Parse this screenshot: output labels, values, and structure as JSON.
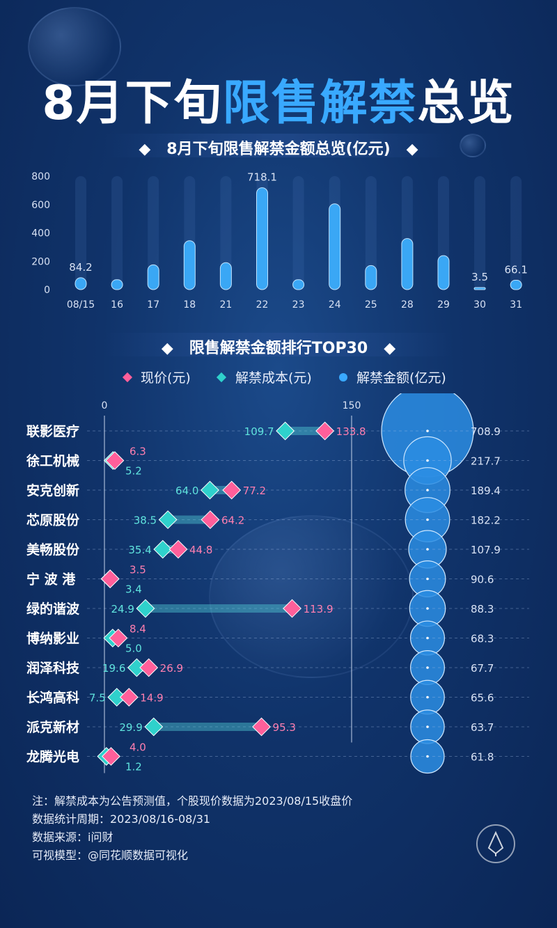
{
  "header": {
    "title_part1": "8月下旬",
    "title_part2": "限售解禁",
    "title_part3": "总览"
  },
  "colors": {
    "accent": "#39a9ff",
    "bar": "#3aa7f5",
    "current_price": "#ff5f9a",
    "unlock_cost": "#2fd1cc",
    "bubble": "#2b8de3"
  },
  "chart_data": [
    {
      "type": "bar",
      "title": "8月下旬限售解禁金额总览(亿元)",
      "categories": [
        "08/15",
        "16",
        "17",
        "18",
        "21",
        "22",
        "23",
        "24",
        "25",
        "28",
        "29",
        "30",
        "31"
      ],
      "values": [
        84.2,
        70,
        175,
        345,
        190,
        718.1,
        70,
        605,
        170,
        360,
        240,
        3.5,
        66.1
      ],
      "labeled_values": {
        "08/15": "84.2",
        "22": "718.1",
        "30": "3.5",
        "31": "66.1"
      },
      "ylim": [
        0,
        800
      ],
      "yticks": [
        "0",
        "200",
        "400",
        "600",
        "800"
      ],
      "grid": false
    },
    {
      "type": "dumbbell",
      "title": "限售解禁金额排行TOP30",
      "legend": [
        "现价(元)",
        "解禁成本(元)",
        "解禁金额(亿元)"
      ],
      "axis_ticks": [
        "0",
        "150"
      ],
      "xlim": [
        0,
        150
      ],
      "stocks": [
        "联影医疗",
        "徐工机械",
        "安克创新",
        "芯原股份",
        "美畅股份",
        "宁 波 港",
        "绿的谐波",
        "博纳影业",
        "润泽科技",
        "长鸿高科",
        "派克新材",
        "龙腾光电"
      ],
      "current_price": [
        133.8,
        6.3,
        77.2,
        64.2,
        44.8,
        3.5,
        113.9,
        8.4,
        26.9,
        14.9,
        95.3,
        4.0
      ],
      "unlock_cost": [
        109.7,
        5.2,
        64.0,
        38.5,
        35.4,
        3.4,
        24.9,
        5.0,
        19.6,
        7.5,
        29.9,
        1.2
      ],
      "current_price_labels": [
        "133.8",
        "6.3",
        "77.2",
        "64.2",
        "44.8",
        "3.5",
        "113.9",
        "8.4",
        "26.9",
        "14.9",
        "95.3",
        "4.0"
      ],
      "unlock_cost_labels": [
        "109.7",
        "5.2",
        "64.0",
        "38.5",
        "35.4",
        "3.4",
        "24.9",
        "5.0",
        "19.6",
        "7.5",
        "29.9",
        "1.2"
      ],
      "unlock_amount": [
        708.9,
        217.7,
        189.4,
        182.2,
        107.9,
        90.6,
        88.3,
        68.3,
        67.7,
        65.6,
        63.7,
        61.8
      ],
      "unlock_amount_labels": [
        "708.9",
        "217.7",
        "189.4",
        "182.2",
        "107.9",
        "90.6",
        "88.3",
        "68.3",
        "67.7",
        "65.6",
        "63.7",
        "61.8"
      ]
    }
  ],
  "notes": {
    "line1": "注：解禁成本为公告预测值，个股现价数据为2023/08/15收盘价",
    "line2": "数据统计周期：2023/08/16-08/31",
    "line3": "数据来源：i问财",
    "line4": "可视模型：@同花顺数据可视化"
  },
  "icons": [
    "coin-icon",
    "diamond-icon",
    "dot-icon",
    "brand-logo-icon"
  ]
}
